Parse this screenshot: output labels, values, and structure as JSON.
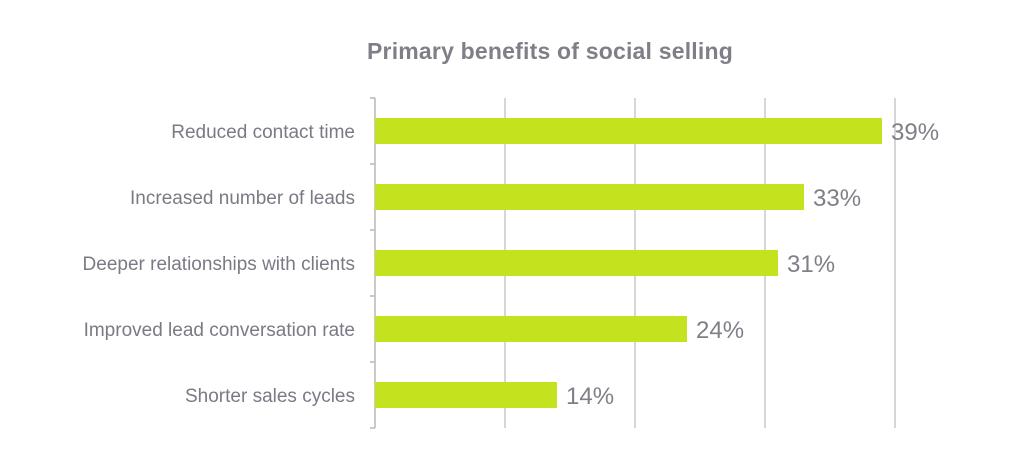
{
  "chart_data": {
    "type": "bar",
    "orientation": "horizontal",
    "title": "Primary benefits of social selling",
    "categories": [
      "Reduced contact time",
      "Increased number of leads",
      "Deeper relationships with clients",
      "Improved lead conversation rate",
      "Shorter sales cycles"
    ],
    "values": [
      39,
      33,
      31,
      24,
      14
    ],
    "value_labels": [
      "39%",
      "33%",
      "31%",
      "24%",
      "14%"
    ],
    "xlim": [
      0,
      40
    ],
    "x_gridlines": [
      0,
      10,
      20,
      30,
      40
    ],
    "grid": true,
    "bar_color": "#c5e21f",
    "grid_color": "#c8c8c8",
    "text_color": "#7f7f88"
  }
}
